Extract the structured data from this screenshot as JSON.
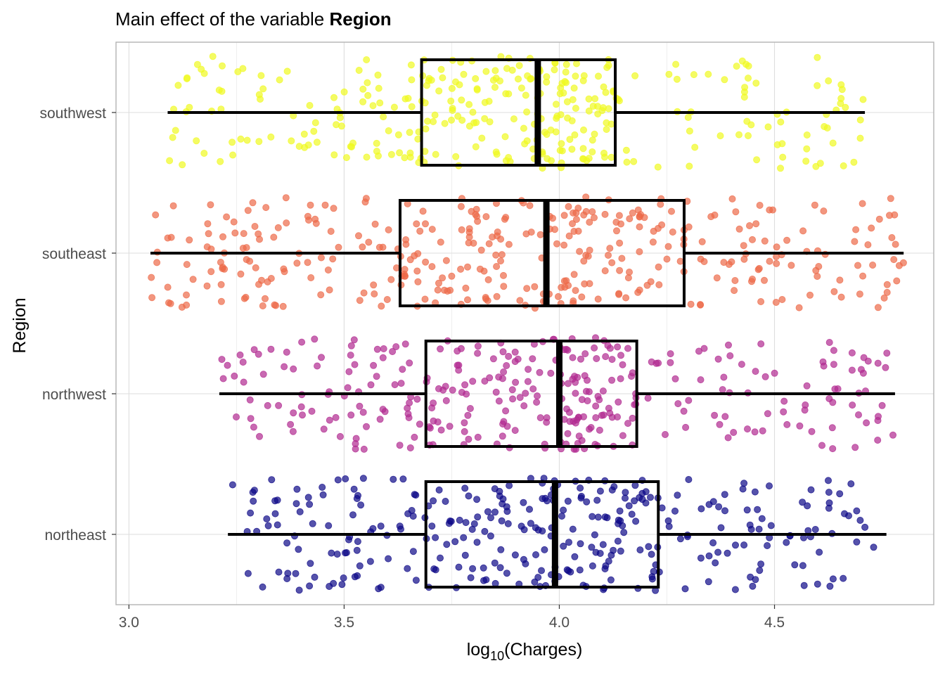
{
  "title": {
    "prefix": "Main effect of the variable ",
    "bold": "Region"
  },
  "chart_data": {
    "type": "boxplot",
    "orientation": "horizontal",
    "xlabel_base": "log",
    "xlabel_sub": "10",
    "xlabel_rest": "(Charges)",
    "ylabel": "Region",
    "xlim": [
      2.97,
      4.87
    ],
    "xticks": [
      3.0,
      3.5,
      4.0,
      4.5
    ],
    "xtick_labels": [
      "3.0",
      "3.5",
      "4.0",
      "4.5"
    ],
    "categories": [
      "northeast",
      "northwest",
      "southeast",
      "southwest"
    ],
    "grid": true,
    "series": [
      {
        "category": "northeast",
        "color": "#0d0887",
        "whisker_low": 3.23,
        "q1": 3.69,
        "median": 3.99,
        "q3": 4.23,
        "whisker_high": 4.76,
        "n": 324
      },
      {
        "category": "northwest",
        "color": "#b12a90",
        "whisker_low": 3.21,
        "q1": 3.69,
        "median": 4.0,
        "q3": 4.18,
        "whisker_high": 4.78,
        "n": 325
      },
      {
        "category": "southeast",
        "color": "#ed6a48",
        "whisker_low": 3.05,
        "q1": 3.63,
        "median": 3.97,
        "q3": 4.29,
        "whisker_high": 4.8,
        "n": 364
      },
      {
        "category": "southwest",
        "color": "#f0f921",
        "whisker_low": 3.09,
        "q1": 3.68,
        "median": 3.95,
        "q3": 4.13,
        "whisker_high": 4.71,
        "n": 325
      }
    ]
  }
}
